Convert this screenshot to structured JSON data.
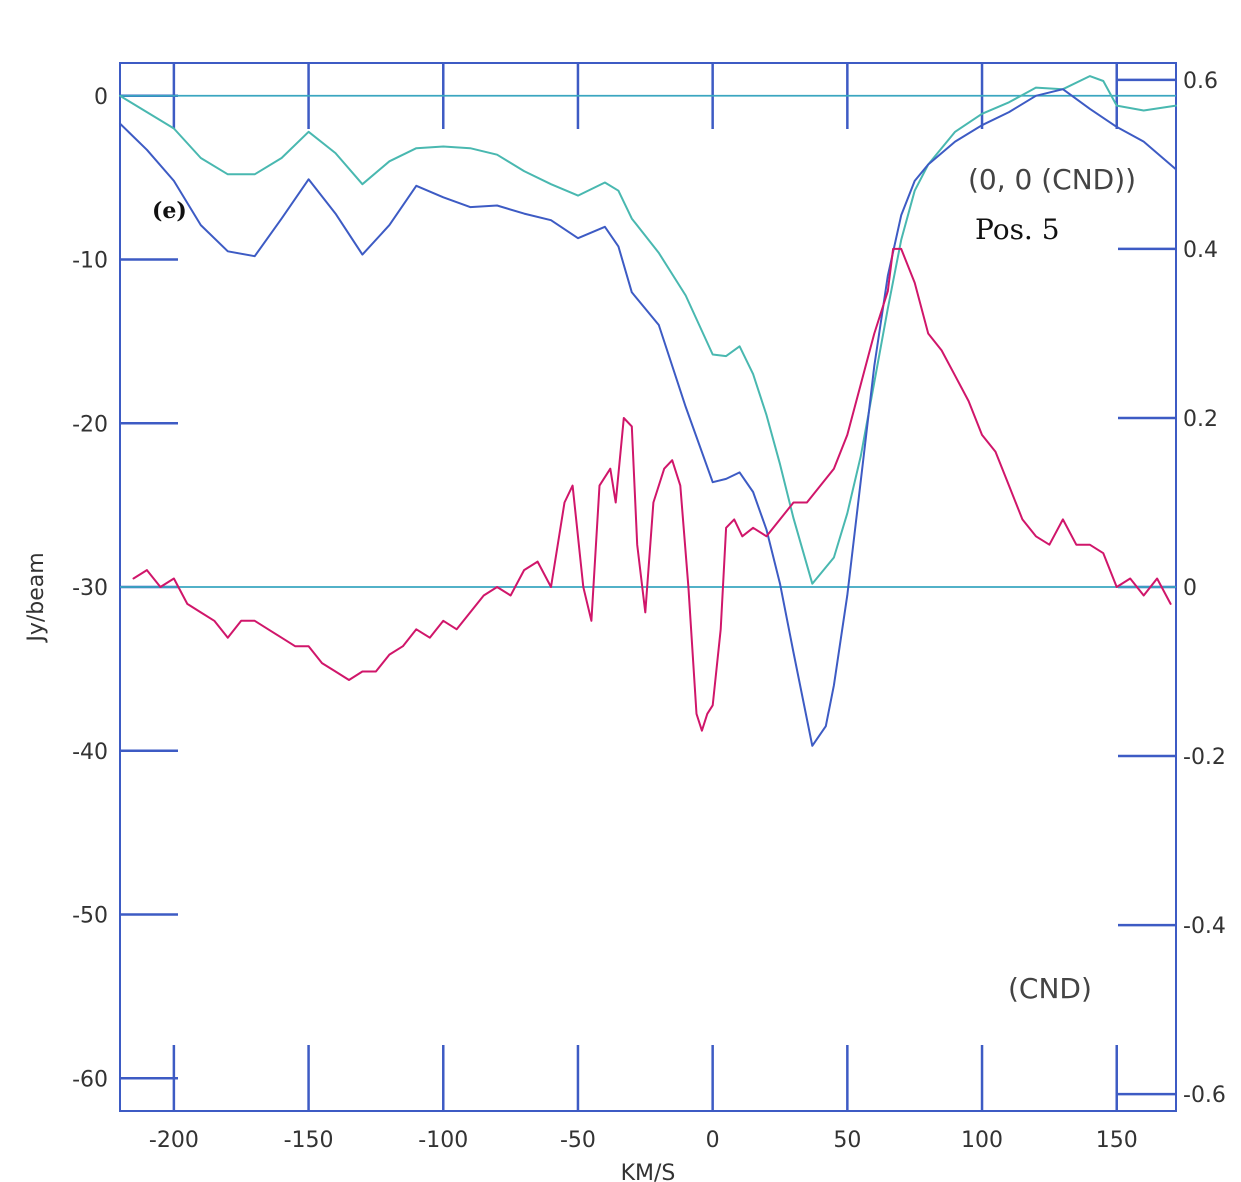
{
  "chart_data": {
    "type": "line",
    "xlabel": "KM/S",
    "ylabel": "Jy/beam",
    "xlim": [
      -220,
      172
    ],
    "ylim_left": [
      -62,
      2
    ],
    "ylim_right": [
      -0.62,
      0.62
    ],
    "grid": false,
    "x_ticks": [
      -200,
      -150,
      -100,
      -50,
      0,
      50,
      100,
      150
    ],
    "x_tick_labels": [
      "-200",
      "-150",
      "-100",
      "-50",
      "0",
      "50",
      "100",
      "150"
    ],
    "y_left_ticks": [
      0,
      -10,
      -20,
      -30,
      -40,
      -50,
      -60
    ],
    "y_left_tick_labels": [
      "0",
      "-10",
      "-20",
      "-30",
      "-40",
      "-50",
      "-60"
    ],
    "y_right_ticks": [
      0.6,
      0.4,
      0.2,
      0,
      -0.2,
      -0.4,
      -0.6
    ],
    "y_right_tick_labels": [
      "0.6",
      "0.4",
      "0.2",
      "0",
      "-0.2",
      "-0.4",
      "-0.6"
    ],
    "reference_lines_left": [
      0,
      -30
    ],
    "annotations": {
      "panel": "(e)",
      "position": "(0, 0 (CND))",
      "pos_label": "Pos. 5",
      "region": "(CND)"
    },
    "colors": {
      "frame": "#3d5bc4",
      "reference": "#3aa6c0",
      "teal": "#49b8b0",
      "blue": "#3d5bc4",
      "magenta": "#d0166a"
    },
    "series": [
      {
        "axis": "left",
        "color_key": "teal",
        "x": [
          -220,
          -210,
          -200,
          -190,
          -180,
          -170,
          -160,
          -150,
          -140,
          -130,
          -120,
          -110,
          -100,
          -90,
          -80,
          -70,
          -60,
          -50,
          -40,
          -35,
          -30,
          -20,
          -10,
          0,
          5,
          10,
          15,
          20,
          25,
          30,
          37,
          45,
          50,
          55,
          60,
          65,
          70,
          75,
          80,
          90,
          100,
          110,
          120,
          130,
          140,
          145,
          150,
          160,
          172
        ],
        "y": [
          0,
          -1,
          -2,
          -3.8,
          -4.8,
          -4.8,
          -3.8,
          -2.2,
          -3.5,
          -5.4,
          -4,
          -3.2,
          -3.1,
          -3.2,
          -3.6,
          -4.6,
          -5.4,
          -6.1,
          -5.3,
          -5.8,
          -7.5,
          -9.6,
          -12.2,
          -15.8,
          -15.9,
          -15.3,
          -17,
          -19.5,
          -22.5,
          -25.8,
          -29.8,
          -28.2,
          -25.5,
          -22,
          -17.5,
          -13,
          -8.8,
          -5.8,
          -4.2,
          -2.2,
          -1.1,
          -0.4,
          0.5,
          0.4,
          1.2,
          0.9,
          -0.6,
          -0.9,
          -0.6
        ]
      },
      {
        "axis": "left",
        "color_key": "blue",
        "x": [
          -220,
          -210,
          -200,
          -190,
          -180,
          -170,
          -160,
          -150,
          -140,
          -130,
          -120,
          -110,
          -100,
          -90,
          -80,
          -70,
          -60,
          -50,
          -40,
          -35,
          -30,
          -20,
          -10,
          0,
          5,
          10,
          15,
          20,
          25,
          30,
          37,
          42,
          45,
          50,
          55,
          60,
          65,
          70,
          75,
          80,
          90,
          100,
          110,
          120,
          130,
          140,
          150,
          160,
          172
        ],
        "y": [
          -1.7,
          -3.3,
          -5.2,
          -7.9,
          -9.5,
          -9.8,
          -7.5,
          -5.1,
          -7.2,
          -9.7,
          -7.9,
          -5.5,
          -6.2,
          -6.8,
          -6.7,
          -7.2,
          -7.6,
          -8.7,
          -8.0,
          -9.2,
          -12,
          -14,
          -19,
          -23.6,
          -23.4,
          -23,
          -24.2,
          -26.5,
          -29.8,
          -34,
          -39.7,
          -38.5,
          -36,
          -30.5,
          -23.5,
          -16.5,
          -11,
          -7.3,
          -5.2,
          -4.2,
          -2.8,
          -1.8,
          -1,
          0,
          0.4,
          -0.8,
          -1.9,
          -2.8,
          -4.5
        ]
      },
      {
        "axis": "right",
        "color_key": "magenta",
        "x": [
          -215,
          -210,
          -205,
          -200,
          -195,
          -190,
          -185,
          -180,
          -175,
          -170,
          -165,
          -160,
          -155,
          -150,
          -145,
          -140,
          -135,
          -130,
          -125,
          -120,
          -115,
          -110,
          -105,
          -100,
          -95,
          -90,
          -85,
          -80,
          -75,
          -70,
          -65,
          -60,
          -55,
          -52,
          -48,
          -45,
          -42,
          -38,
          -36,
          -33,
          -30,
          -28,
          -25,
          -22,
          -18,
          -15,
          -12,
          -9,
          -6,
          -4,
          -2,
          0,
          3,
          5,
          8,
          11,
          15,
          20,
          25,
          30,
          35,
          40,
          45,
          50,
          55,
          60,
          65,
          67,
          70,
          75,
          80,
          85,
          90,
          95,
          100,
          105,
          110,
          115,
          120,
          125,
          130,
          135,
          140,
          145,
          150,
          155,
          160,
          165,
          170
        ],
        "y": [
          0.01,
          0.02,
          0.0,
          0.01,
          -0.02,
          -0.03,
          -0.04,
          -0.06,
          -0.04,
          -0.04,
          -0.05,
          -0.06,
          -0.07,
          -0.07,
          -0.09,
          -0.1,
          -0.11,
          -0.1,
          -0.1,
          -0.08,
          -0.07,
          -0.05,
          -0.06,
          -0.04,
          -0.05,
          -0.03,
          -0.01,
          0.0,
          -0.01,
          0.02,
          0.03,
          0.0,
          0.1,
          0.12,
          0.0,
          -0.04,
          0.12,
          0.14,
          0.1,
          0.2,
          0.19,
          0.05,
          -0.03,
          0.1,
          0.14,
          0.15,
          0.12,
          0.0,
          -0.15,
          -0.17,
          -0.15,
          -0.14,
          -0.05,
          0.07,
          0.08,
          0.06,
          0.07,
          0.06,
          0.08,
          0.1,
          0.1,
          0.12,
          0.14,
          0.18,
          0.24,
          0.3,
          0.35,
          0.4,
          0.4,
          0.36,
          0.3,
          0.28,
          0.25,
          0.22,
          0.18,
          0.16,
          0.12,
          0.08,
          0.06,
          0.05,
          0.08,
          0.05,
          0.05,
          0.04,
          0.0,
          0.01,
          -0.01,
          0.01,
          -0.02
        ]
      }
    ]
  }
}
